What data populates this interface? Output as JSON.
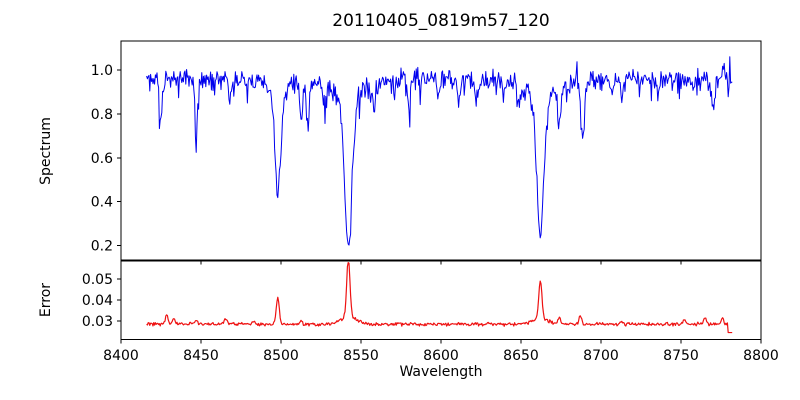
{
  "figure": {
    "title": "20110405_0819m57_120",
    "xlabel": "Wavelength",
    "spectrum_ylabel": "Spectrum",
    "error_ylabel": "Error",
    "background_color": "#ffffff",
    "spine_color": "#000000",
    "spectrum_line_color": "#0000ee",
    "error_line_color": "#ee1111"
  },
  "chart_data": [
    {
      "type": "line",
      "name": "spectrum",
      "title": "20110405_0819m57_120",
      "ylabel": "Spectrum",
      "legend": null,
      "grid": false,
      "xlim": [
        8400,
        8800
      ],
      "ylim": [
        0.131,
        1.133
      ],
      "yticks": [
        {
          "value": 0.2,
          "label": "0.2"
        },
        {
          "value": 0.4,
          "label": "0.4"
        },
        {
          "value": 0.6,
          "label": "0.6"
        },
        {
          "value": 0.8,
          "label": "0.8"
        },
        {
          "value": 1.0,
          "label": "1.0"
        }
      ],
      "line_color": "#0000ee",
      "x_start": 8416,
      "x_end": 8782,
      "x_step": 0.5,
      "continuum": 0.958,
      "noise_amp": 0.066,
      "dip_probability": 0.1,
      "dip_max": 0.09,
      "spike_probability": 0.03,
      "spike_max": 0.06,
      "noise_seed": 20110405,
      "clamp": [
        0.155,
        1.1
      ],
      "absorption_lines": [
        {
          "center": 8424.8,
          "depth": 0.17,
          "sigma": 0.9
        },
        {
          "center": 8447.0,
          "depth": 0.23,
          "sigma": 0.9
        },
        {
          "center": 8468.0,
          "depth": 0.09,
          "sigma": 0.8
        },
        {
          "center": 8498.0,
          "depth": 0.52,
          "sigma": 1.7
        },
        {
          "center": 8512.5,
          "depth": 0.15,
          "sigma": 0.9
        },
        {
          "center": 8516.5,
          "depth": 0.19,
          "sigma": 0.9
        },
        {
          "center": 8527.0,
          "depth": 0.1,
          "sigma": 0.8
        },
        {
          "center": 8542.1,
          "depth": 0.76,
          "sigma": 2.2
        },
        {
          "center": 8558.0,
          "depth": 0.11,
          "sigma": 0.8
        },
        {
          "center": 8580.0,
          "depth": 0.12,
          "sigma": 0.9
        },
        {
          "center": 8598.0,
          "depth": 0.09,
          "sigma": 0.8
        },
        {
          "center": 8611.0,
          "depth": 0.1,
          "sigma": 0.8
        },
        {
          "center": 8622.0,
          "depth": 0.11,
          "sigma": 0.8
        },
        {
          "center": 8648.0,
          "depth": 0.09,
          "sigma": 0.8
        },
        {
          "center": 8662.1,
          "depth": 0.72,
          "sigma": 2.1
        },
        {
          "center": 8674.0,
          "depth": 0.19,
          "sigma": 0.9
        },
        {
          "center": 8688.5,
          "depth": 0.27,
          "sigma": 1.1
        },
        {
          "center": 8713.0,
          "depth": 0.1,
          "sigma": 0.8
        },
        {
          "center": 8736.0,
          "depth": 0.09,
          "sigma": 0.8
        },
        {
          "center": 8770.0,
          "depth": 0.14,
          "sigma": 0.9
        },
        {
          "center": 8777.0,
          "depth": -0.06,
          "sigma": 1.0
        }
      ]
    },
    {
      "type": "line",
      "name": "error",
      "ylabel": "Error",
      "xlabel": "Wavelength",
      "legend": null,
      "grid": false,
      "xlim": [
        8400,
        8800
      ],
      "ylim": [
        0.0212,
        0.0588
      ],
      "xticks": [
        {
          "value": 8400,
          "label": "8400"
        },
        {
          "value": 8450,
          "label": "8450"
        },
        {
          "value": 8500,
          "label": "8500"
        },
        {
          "value": 8550,
          "label": "8550"
        },
        {
          "value": 8600,
          "label": "8600"
        },
        {
          "value": 8650,
          "label": "8650"
        },
        {
          "value": 8700,
          "label": "8700"
        },
        {
          "value": 8750,
          "label": "8750"
        },
        {
          "value": 8800,
          "label": "8800"
        }
      ],
      "yticks": [
        {
          "value": 0.03,
          "label": "0.03"
        },
        {
          "value": 0.04,
          "label": "0.04"
        },
        {
          "value": 0.05,
          "label": "0.05"
        }
      ],
      "line_color": "#ee1111",
      "x_start": 8416,
      "x_end": 8782,
      "x_step": 0.5,
      "baseline": 0.0285,
      "noise_amp": 0.0012,
      "noise_seed": 819,
      "clamp": [
        0.0225,
        0.0578
      ],
      "peaks": [
        {
          "center": 8428.5,
          "height": 0.0045,
          "sigma": 0.8
        },
        {
          "center": 8433.0,
          "height": 0.0028,
          "sigma": 0.7
        },
        {
          "center": 8447.0,
          "height": 0.0022,
          "sigma": 0.7
        },
        {
          "center": 8465.5,
          "height": 0.003,
          "sigma": 0.8
        },
        {
          "center": 8483.0,
          "height": 0.0015,
          "sigma": 0.7
        },
        {
          "center": 8498.0,
          "height": 0.013,
          "sigma": 0.9
        },
        {
          "center": 8512.5,
          "height": 0.0018,
          "sigma": 0.7
        },
        {
          "center": 8542.1,
          "height": 0.028,
          "sigma": 1.0
        },
        {
          "center": 8542.1,
          "height": 0.0035,
          "sigma": 5.0
        },
        {
          "center": 8662.1,
          "height": 0.0175,
          "sigma": 1.0
        },
        {
          "center": 8662.1,
          "height": 0.0028,
          "sigma": 4.5
        },
        {
          "center": 8674.0,
          "height": 0.0035,
          "sigma": 0.8
        },
        {
          "center": 8687.0,
          "height": 0.004,
          "sigma": 0.8
        },
        {
          "center": 8713.0,
          "height": 0.0015,
          "sigma": 0.7
        },
        {
          "center": 8752.0,
          "height": 0.002,
          "sigma": 0.8
        },
        {
          "center": 8765.0,
          "height": 0.0028,
          "sigma": 0.8
        },
        {
          "center": 8776.0,
          "height": 0.003,
          "sigma": 0.8
        }
      ],
      "tail_drop": {
        "from": 8779.5,
        "value": 0.0245
      }
    }
  ]
}
